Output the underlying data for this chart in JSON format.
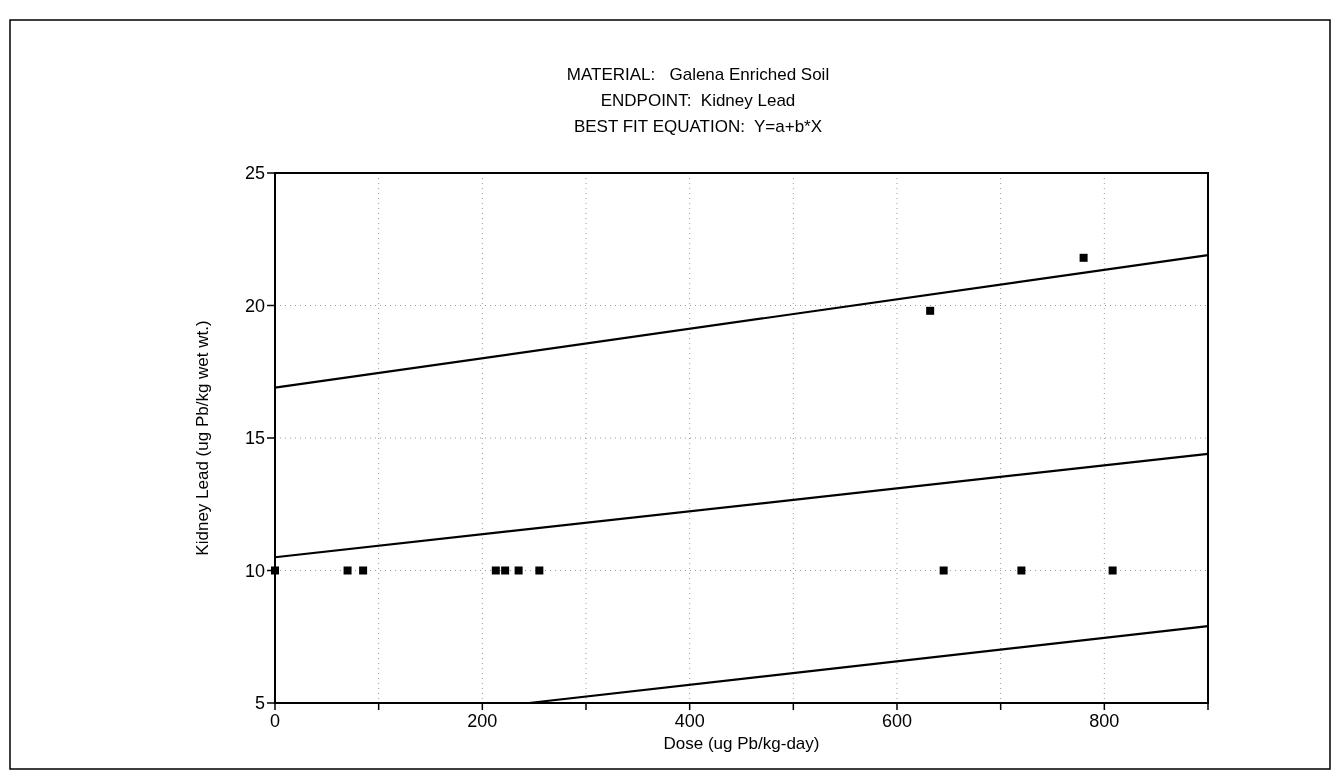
{
  "chart_data": {
    "type": "scatter",
    "title": "MATERIAL:   Galena Enriched Soil",
    "subtitle": "ENDPOINT:  Kidney Lead\nBEST FIT EQUATION:  Y=a+b*X",
    "xlabel": "Dose (ug Pb/kg-day)",
    "ylabel": "Kidney Lead (ug Pb/kg wet wt.)",
    "series": [
      {
        "color": "#000000",
        "marker": "square",
        "x": [
          0,
          70,
          85,
          213,
          222,
          235,
          255,
          632,
          645,
          720,
          780,
          808
        ],
        "values": [
          10,
          10,
          10,
          10,
          10,
          10,
          10,
          19.8,
          10,
          10,
          21.8,
          10
        ]
      },
      {
        "type": "line",
        "color": "#000000",
        "x": [
          0,
          900
        ],
        "values": [
          16.9,
          21.9
        ]
      },
      {
        "type": "line",
        "color": "#000000",
        "x": [
          0,
          900
        ],
        "values": [
          10.5,
          14.4
        ]
      },
      {
        "type": "line",
        "color": "#000000",
        "x": [
          245,
          900
        ],
        "values": [
          5,
          7.9
        ]
      }
    ],
    "xlim": [
      0,
      900
    ],
    "ylim": [
      5,
      25
    ],
    "xticks": [
      0,
      {
        "value": 100,
        "label": null
      },
      200,
      {
        "value": 300,
        "label": null
      },
      400,
      {
        "value": 500,
        "label": null
      },
      600,
      {
        "value": 700,
        "label": null
      },
      800,
      {
        "value": 900,
        "label": null
      }
    ],
    "yticks": [
      5,
      10,
      15,
      20,
      25
    ],
    "grid": true,
    "line_style": "solid"
  }
}
